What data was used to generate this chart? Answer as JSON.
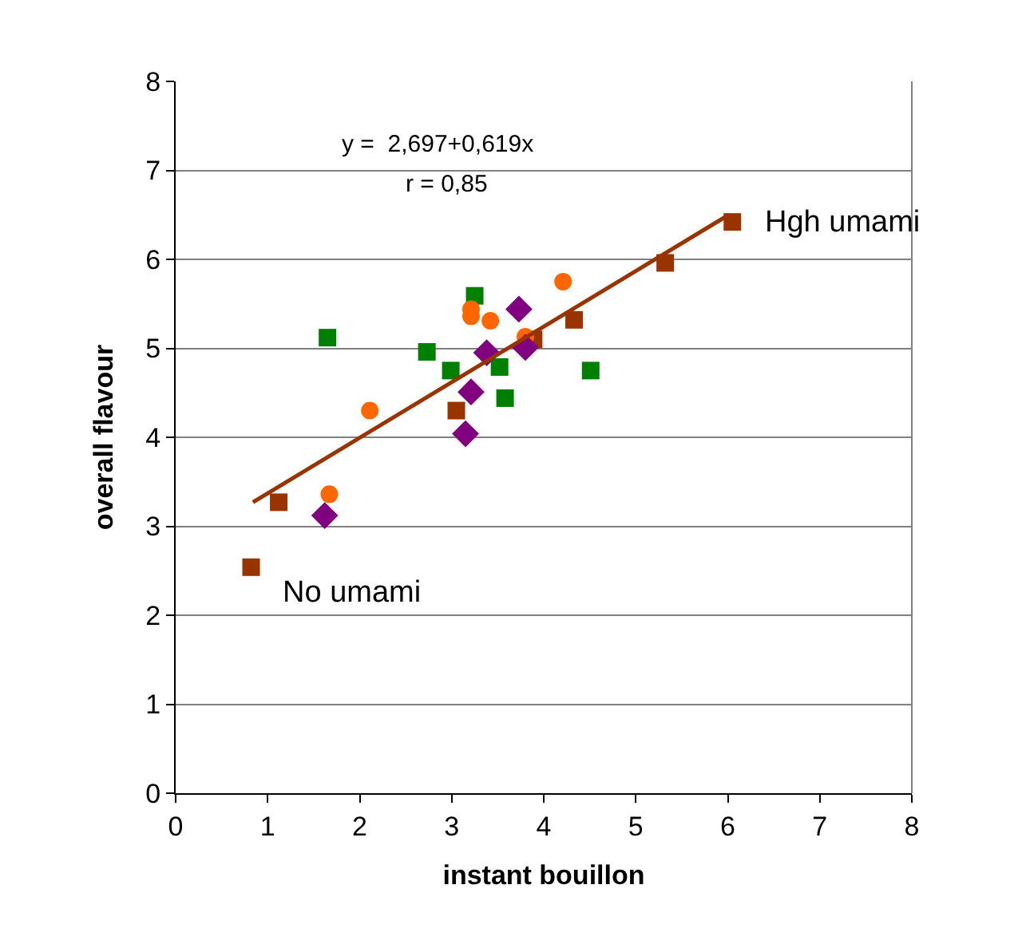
{
  "chart_data": {
    "type": "scatter",
    "xlabel": "instant bouillon",
    "ylabel": "overall flavour",
    "xlim": [
      0,
      8
    ],
    "xticks": [
      0,
      1,
      2,
      3,
      4,
      5,
      6,
      7,
      8
    ],
    "ylim": [
      0,
      8
    ],
    "yticks": [
      0,
      1,
      2,
      3,
      4,
      5,
      6,
      7,
      8
    ],
    "grid": "y",
    "series": [
      {
        "color": "#993300",
        "marker": "square",
        "x": [
          0.82,
          1.12,
          3.05,
          3.89,
          4.33,
          5.32,
          6.05
        ],
        "values": [
          2.54,
          3.27,
          4.3,
          5.1,
          5.32,
          5.96,
          6.42
        ]
      },
      {
        "color": "#008000",
        "marker": "square",
        "x": [
          1.65,
          2.73,
          2.99,
          3.25,
          3.52,
          3.58,
          4.51
        ],
        "values": [
          5.12,
          4.96,
          4.75,
          5.59,
          4.79,
          4.44,
          4.75
        ]
      },
      {
        "color": "#ff6600",
        "marker": "circle",
        "x": [
          1.67,
          2.11,
          3.21,
          3.21,
          3.42,
          3.8,
          4.21
        ],
        "values": [
          3.36,
          4.3,
          5.44,
          5.36,
          5.31,
          5.13,
          5.75
        ]
      },
      {
        "color": "#800080",
        "marker": "diamond",
        "x": [
          1.62,
          3.15,
          3.21,
          3.38,
          3.73,
          3.8
        ],
        "values": [
          3.12,
          4.04,
          4.51,
          4.95,
          5.44,
          5.01
        ]
      },
      {
        "type": "line",
        "color": "#993300",
        "marker": "none",
        "line_style": "solid",
        "x": [
          0.84,
          6.01
        ],
        "values": [
          3.27,
          6.5
        ]
      }
    ],
    "annotations": [
      "y =  2,697+0,619x",
      "r = 0,85",
      {
        "text": "No umami",
        "x": 0.82,
        "y": 2.54
      },
      {
        "text": "Hgh umami",
        "x": 6.05,
        "y": 6.42
      }
    ]
  }
}
